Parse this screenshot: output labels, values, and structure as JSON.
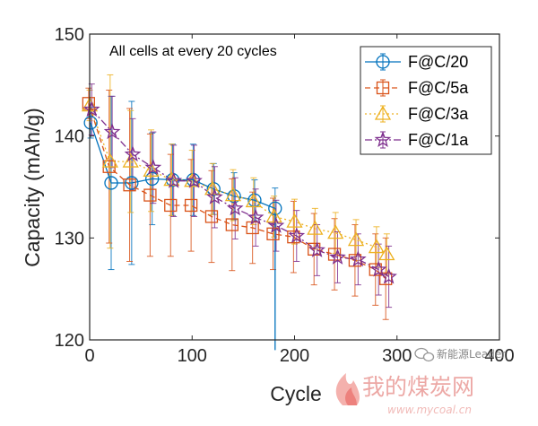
{
  "chart_data": {
    "type": "line",
    "title": "",
    "annotation": "All cells at every 20 cycles",
    "xlabel": "Cycle",
    "ylabel": "Capacity (mAh/g)",
    "xlim": [
      0,
      400
    ],
    "ylim": [
      120,
      150
    ],
    "xticks": [
      0,
      100,
      200,
      300,
      400
    ],
    "yticks": [
      120,
      130,
      140,
      150
    ],
    "grid": false,
    "legend_position": "top-right",
    "x": [
      0,
      20,
      40,
      60,
      80,
      100,
      120,
      140,
      160,
      180,
      200,
      220,
      240,
      260,
      280,
      290
    ],
    "series": [
      {
        "name": "F@C/20",
        "color": "#0072BD",
        "marker": "circle",
        "dash": "solid",
        "x": [
          1,
          21,
          41,
          61,
          81,
          101,
          121,
          141,
          161,
          181
        ],
        "values": [
          141.3,
          135.4,
          135.4,
          135.8,
          135.7,
          135.7,
          134.8,
          134.1,
          133.7,
          132.9
        ],
        "err": [
          1.5,
          8.5,
          8.0,
          4.5,
          3.5,
          3.5,
          2.5,
          2.3,
          2.0,
          2.0
        ],
        "drop_to": 119
      },
      {
        "name": "F@C/5a",
        "color": "#D95319",
        "marker": "square",
        "dash": "6,4",
        "x": [
          -1,
          19,
          39,
          59,
          79,
          99,
          119,
          139,
          159,
          179,
          199,
          219,
          239,
          259,
          279,
          289
        ],
        "values": [
          143.2,
          137.0,
          135.2,
          134.2,
          133.2,
          133.2,
          132.1,
          131.3,
          131.0,
          130.4,
          130.1,
          128.9,
          128.4,
          127.8,
          126.9,
          126.0
        ],
        "err": [
          1.5,
          7.5,
          7.5,
          6.0,
          5.0,
          4.5,
          4.5,
          4.5,
          3.5,
          3.5,
          3.5,
          3.5,
          3.5,
          3.5,
          3.5,
          4.0
        ]
      },
      {
        "name": "F@C/3a",
        "color": "#EDB120",
        "marker": "triangle",
        "dash": "2,3",
        "x": [
          0,
          20,
          40,
          60,
          80,
          100,
          120,
          140,
          160,
          180,
          200,
          220,
          240,
          260,
          280,
          290
        ],
        "values": [
          143.0,
          137.5,
          137.5,
          136.6,
          135.7,
          135.6,
          134.8,
          134.2,
          133.6,
          132.1,
          131.6,
          130.9,
          130.5,
          129.8,
          129.1,
          128.4
        ],
        "err": [
          1.5,
          8.5,
          5.0,
          4.0,
          3.5,
          3.0,
          2.5,
          2.5,
          2.3,
          2.0,
          2.2,
          2.0,
          2.0,
          2.0,
          2.0,
          2.0
        ]
      },
      {
        "name": "F@C/1a",
        "color": "#7E2F8E",
        "marker": "star",
        "dash": "8,3,2,3",
        "x": [
          2,
          22,
          42,
          62,
          82,
          102,
          122,
          142,
          162,
          182,
          202,
          222,
          242,
          262,
          282,
          292
        ],
        "values": [
          142.6,
          140.4,
          138.2,
          136.9,
          135.6,
          135.6,
          134.0,
          132.9,
          132.0,
          131.2,
          130.2,
          128.8,
          128.1,
          127.9,
          126.9,
          126.2
        ],
        "err": [
          2.5,
          3.5,
          3.5,
          3.5,
          3.5,
          3.5,
          3.0,
          3.0,
          2.8,
          2.5,
          2.5,
          2.5,
          2.5,
          2.5,
          2.5,
          3.0
        ]
      }
    ]
  },
  "watermark": {
    "top_text": "新能源Leader",
    "main_text": "我的煤炭网",
    "url_text": "www.mycoal.cn"
  }
}
